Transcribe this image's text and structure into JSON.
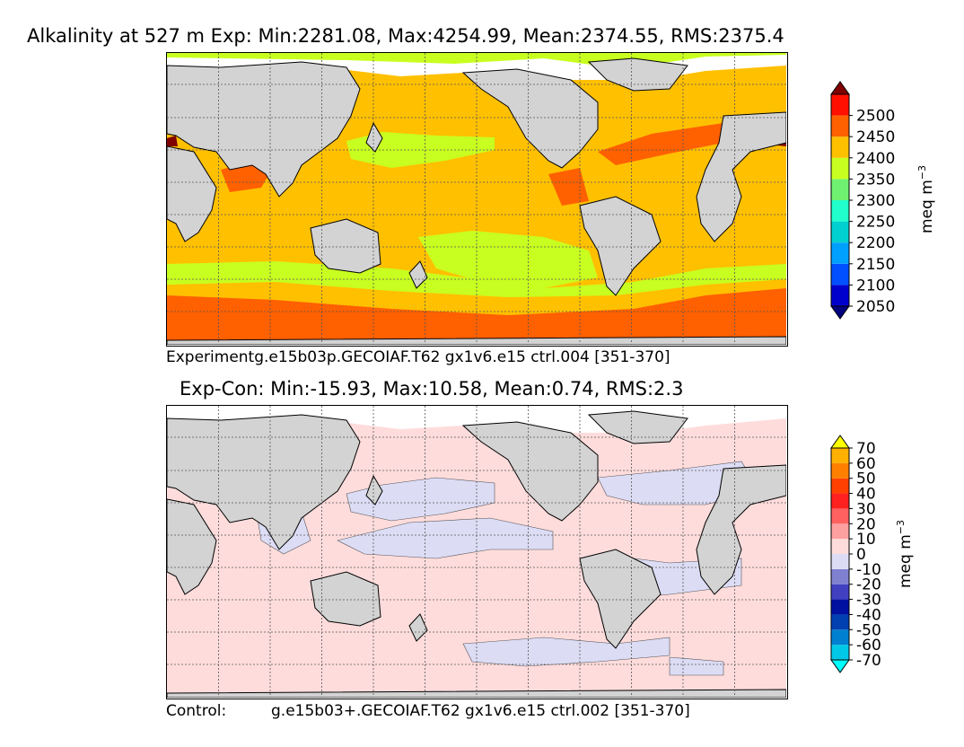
{
  "chart_data": [
    {
      "type": "heatmap",
      "title": "Alkalinity at 527 m Exp: Min:2281.08, Max:4254.99, Mean:2374.55, RMS:2375.4",
      "footer": "Experimentg.e15b03p.GECOIAF.T62 gx1v6.e15 ctrl.004   [351-370]",
      "colorbar": {
        "label": "meq m",
        "label_exp": "−3",
        "levels": [
          2050,
          2100,
          2150,
          2200,
          2250,
          2300,
          2350,
          2400,
          2450,
          2500
        ],
        "tick_labels": [
          "2050",
          "2100",
          "2150",
          "2200",
          "2250",
          "2300",
          "2350",
          "2400",
          "2450",
          "2500"
        ],
        "colors": [
          "#000080",
          "#0000cd",
          "#0050ff",
          "#00a0ff",
          "#00d0d0",
          "#20ffcc",
          "#70f070",
          "#c8ff20",
          "#ffc000",
          "#ff6000",
          "#ff1000",
          "#800000"
        ]
      },
      "stats": {
        "min": 2281.08,
        "max": 4254.99,
        "mean": 2374.55,
        "rms": 2375.4
      }
    },
    {
      "type": "heatmap",
      "title": "Exp-Con: Min:-15.93, Max:10.58, Mean:0.74, RMS:2.3",
      "footer_left": "Control:",
      "footer_right": "g.e15b03+.GECOIAF.T62 gx1v6.e15 ctrl.002  [351-370]",
      "colorbar": {
        "label": "meq m",
        "label_exp": "−3",
        "levels": [
          -70,
          -60,
          -50,
          -40,
          -30,
          -20,
          -10,
          0,
          10,
          20,
          30,
          40,
          50,
          60,
          70
        ],
        "tick_labels": [
          "-70",
          "-60",
          "-50",
          "-40",
          "-30",
          "-20",
          "-10",
          "0",
          "10",
          "20",
          "30",
          "40",
          "50",
          "60",
          "70"
        ],
        "colors": [
          "#00ffff",
          "#00c8e6",
          "#0080d0",
          "#0040b0",
          "#0010a0",
          "#4040c0",
          "#8080d0",
          "#dcdcf5",
          "#ffdcdc",
          "#ffa0a0",
          "#ff6060",
          "#ff2020",
          "#ff4000",
          "#ff8000",
          "#ffb000",
          "#ffff00"
        ]
      },
      "stats": {
        "min": -15.93,
        "max": 10.58,
        "mean": 0.74,
        "rms": 2.3
      }
    }
  ],
  "colors": {
    "land": "#d3d3d3",
    "grid": "#555555",
    "top_ocean": "#ffc000",
    "diff_ocean": "#ffdcdc"
  }
}
